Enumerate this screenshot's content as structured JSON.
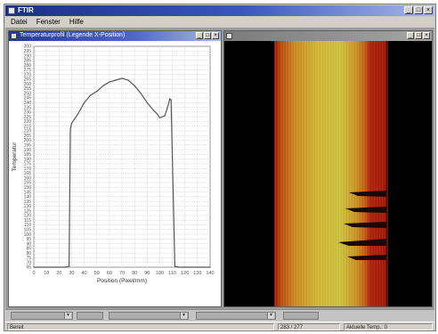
{
  "app": {
    "title": "FTIR",
    "menu": [
      "Datei",
      "Fenster",
      "Hilfe"
    ],
    "window_buttons": [
      "_",
      "□",
      "×"
    ]
  },
  "profile_window": {
    "title": "Temperaturprofil (Legende X-Position)",
    "buttons": [
      "_",
      "□",
      "×"
    ]
  },
  "thermal_window": {
    "title": "",
    "buttons": [
      "_",
      "□",
      "×"
    ]
  },
  "chart_data": {
    "type": "line",
    "title": "",
    "xlabel": "Position (Pixel/mm)",
    "ylabel": "Temperatur",
    "xlim": [
      0,
      140
    ],
    "ylim": [
      65,
      300
    ],
    "x_ticks": [
      "0",
      "10",
      "20",
      "30",
      "40",
      "50",
      "60",
      "70",
      "80",
      "90",
      "100",
      "110",
      "120",
      "130",
      "140"
    ],
    "y_ticks": [
      "300",
      "295",
      "290",
      "285",
      "280",
      "275",
      "270",
      "265",
      "260",
      "255",
      "250",
      "245",
      "240",
      "235",
      "230",
      "225",
      "220",
      "215",
      "210",
      "205",
      "200",
      "195",
      "190",
      "185",
      "180",
      "175",
      "170",
      "165",
      "160",
      "155",
      "150",
      "145",
      "140",
      "135",
      "130",
      "125",
      "120",
      "115",
      "110",
      "105",
      "100",
      "95",
      "90",
      "85",
      "80",
      "75",
      "70",
      "65"
    ],
    "grid": true,
    "series": [
      {
        "color": "#555555",
        "x": [
          0,
          5,
          10,
          15,
          20,
          25,
          28,
          29,
          30,
          32,
          35,
          40,
          45,
          50,
          55,
          60,
          65,
          70,
          75,
          80,
          85,
          90,
          95,
          98,
          100,
          104,
          106,
          108,
          109,
          112,
          115,
          120,
          125,
          130,
          135,
          140
        ],
        "y": [
          65,
          65,
          65,
          65,
          65,
          65,
          66,
          212,
          218,
          222,
          228,
          240,
          248,
          252,
          258,
          262,
          264,
          266,
          264,
          258,
          250,
          240,
          232,
          228,
          224,
          226,
          234,
          244,
          243,
          66,
          65,
          65,
          65,
          65,
          65,
          65
        ]
      }
    ]
  },
  "controls": [
    "",
    "",
    "",
    "",
    ""
  ],
  "status": {
    "left": "Bereit",
    "mid": "283 / 277",
    "right": "Aktuelle Temp.: 0"
  },
  "colors": {
    "titlebar": "#1c2f86",
    "thermal_dark": "#8a1406",
    "thermal_hot": "#f4e23c"
  }
}
